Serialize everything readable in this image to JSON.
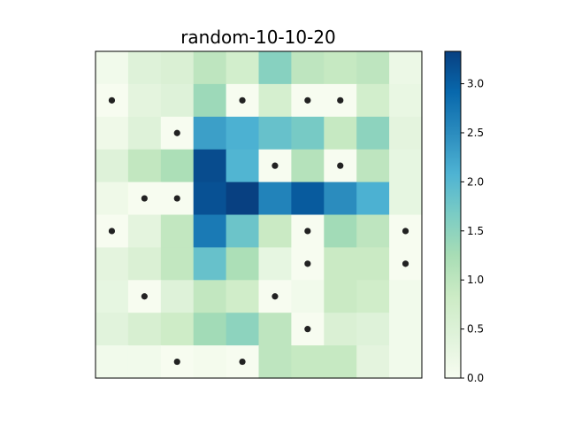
{
  "chart_data": {
    "type": "heatmap",
    "title": "random-10-10-20",
    "rows": 10,
    "cols": 10,
    "grid": false,
    "xticks": [],
    "yticks": [],
    "colormap": "GnBu",
    "vmin": 0.0,
    "vmax": 3.33,
    "colorbar": {
      "placement": "right",
      "ticks": [
        "0.0",
        "0.5",
        "1.0",
        "1.5",
        "2.0",
        "2.5",
        "3.0"
      ],
      "tick_values": [
        0.0,
        0.5,
        1.0,
        1.5,
        2.0,
        2.5,
        3.0
      ]
    },
    "values": [
      [
        0.1,
        0.45,
        0.55,
        1.0,
        0.7,
        1.55,
        1.0,
        0.9,
        1.0,
        0.2
      ],
      [
        0.0,
        0.35,
        0.45,
        1.35,
        0.0,
        0.65,
        0.0,
        0.0,
        0.7,
        0.25
      ],
      [
        0.15,
        0.45,
        0.0,
        2.3,
        2.1,
        1.85,
        1.7,
        0.9,
        1.5,
        0.35
      ],
      [
        0.45,
        0.95,
        1.2,
        3.2,
        2.05,
        0.0,
        1.1,
        0.0,
        1.0,
        0.3
      ],
      [
        0.15,
        0.0,
        0.0,
        3.15,
        3.33,
        2.6,
        3.05,
        2.5,
        2.1,
        0.3
      ],
      [
        0.0,
        0.35,
        0.95,
        2.7,
        1.8,
        0.85,
        0.0,
        1.3,
        1.0,
        0.0
      ],
      [
        0.35,
        0.55,
        0.95,
        1.85,
        1.2,
        0.3,
        0.0,
        0.85,
        0.85,
        0.0
      ],
      [
        0.3,
        0.0,
        0.45,
        0.95,
        0.75,
        0.0,
        0.1,
        0.85,
        0.75,
        0.1
      ],
      [
        0.4,
        0.6,
        0.8,
        1.3,
        1.5,
        1.0,
        0.0,
        0.55,
        0.45,
        0.1
      ],
      [
        0.1,
        0.1,
        0.0,
        0.05,
        0.0,
        1.0,
        0.9,
        0.9,
        0.35,
        0.1
      ]
    ],
    "markers": [
      [
        1,
        0
      ],
      [
        1,
        4
      ],
      [
        1,
        6
      ],
      [
        1,
        7
      ],
      [
        2,
        2
      ],
      [
        3,
        5
      ],
      [
        3,
        7
      ],
      [
        4,
        1
      ],
      [
        4,
        2
      ],
      [
        5,
        0
      ],
      [
        5,
        6
      ],
      [
        5,
        9
      ],
      [
        6,
        6
      ],
      [
        6,
        9
      ],
      [
        7,
        1
      ],
      [
        7,
        5
      ],
      [
        8,
        6
      ],
      [
        9,
        2
      ],
      [
        9,
        4
      ]
    ],
    "marker_color": "#222222"
  }
}
